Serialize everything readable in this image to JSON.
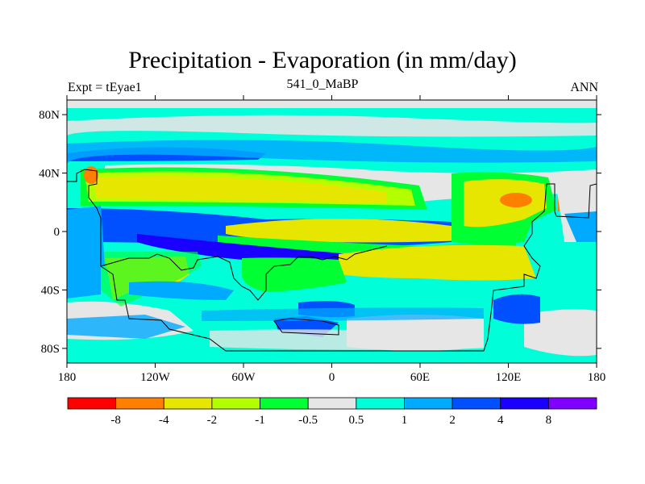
{
  "title": "Precipitation - Evaporation (in mm/day)",
  "left_label": "Expt = tEyae1",
  "center_label": "541_0_MaBP",
  "right_label": "ANN",
  "y_ticks": [
    {
      "lat": 80,
      "label": "80N"
    },
    {
      "lat": 40,
      "label": "40N"
    },
    {
      "lat": 0,
      "label": "0"
    },
    {
      "lat": -40,
      "label": "40S"
    },
    {
      "lat": -80,
      "label": "80S"
    }
  ],
  "x_ticks": [
    {
      "lon": -180,
      "label": "180"
    },
    {
      "lon": -120,
      "label": "120W"
    },
    {
      "lon": -60,
      "label": "60W"
    },
    {
      "lon": 0,
      "label": "0"
    },
    {
      "lon": 60,
      "label": "60E"
    },
    {
      "lon": 120,
      "label": "120E"
    },
    {
      "lon": 180,
      "label": "180"
    }
  ],
  "colorbar": {
    "colors": [
      "#ff0000",
      "#ff8000",
      "#e6e600",
      "#b3ff00",
      "#00ff33",
      "#e6e6e6",
      "#00ffd9",
      "#00aaff",
      "#0050ff",
      "#1a00ff",
      "#8000ff"
    ],
    "labels": [
      "-8",
      "-4",
      "-2",
      "-1",
      "-0.5",
      "0.5",
      "1",
      "2",
      "4",
      "8"
    ]
  },
  "map_colors": {
    "ocean_base": "#00ffd9",
    "land_base": "#b3ff00"
  }
}
